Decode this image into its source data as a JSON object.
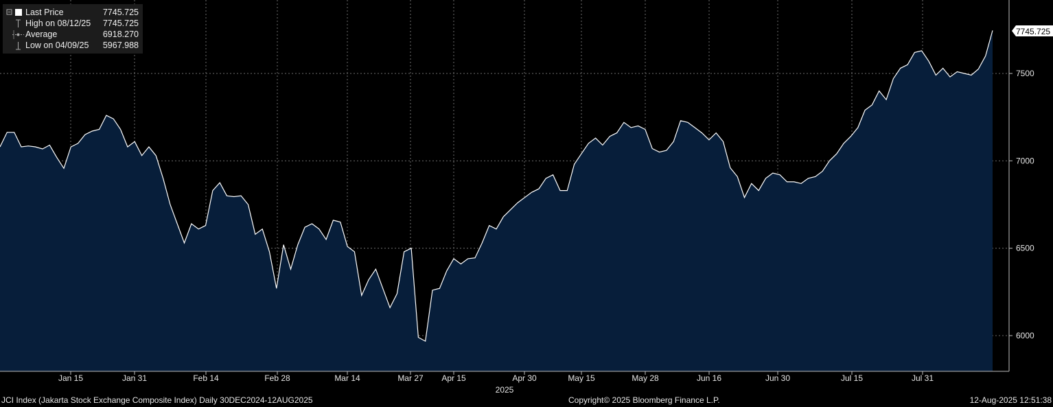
{
  "legend": {
    "last_price_label": "Last Price",
    "last_price_value": "7745.725",
    "high_label": "High on 08/12/25",
    "high_value": "7745.725",
    "average_label": "Average",
    "average_value": "6918.270",
    "low_label": "Low on 04/09/25",
    "low_value": "5967.988",
    "series_color": "#ffffff"
  },
  "last_value_tag": "7745.725",
  "footer": {
    "left": "JCI Index (Jakarta Stock Exchange Composite Index)  Daily 30DEC2024-12AUG2025",
    "center": "Copyright© 2025 Bloomberg Finance L.P.",
    "right": "12-Aug-2025 12:51:38"
  },
  "chart_data": {
    "type": "area",
    "line_color": "#ffffff",
    "fill_color": "#071e3a",
    "background": "#000000",
    "grid": true,
    "legend_position": "top-left",
    "ylim": [
      5800,
      7900
    ],
    "y_ticks": [
      6000,
      6500,
      7000,
      7500
    ],
    "x_ticks": [
      "Jan 15",
      "Jan 31",
      "Feb 14",
      "Feb 28",
      "Mar 14",
      "Mar 27",
      "Apr 15",
      "Apr 30",
      "May 15",
      "May 28",
      "Jun 16",
      "Jun 30",
      "Jul 15",
      "Jul 31"
    ],
    "x_year_label": "2025",
    "values": [
      7080,
      7163,
      7163,
      7080,
      7085,
      7080,
      7068,
      7090,
      7020,
      6957,
      7080,
      7100,
      7150,
      7170,
      7180,
      7260,
      7240,
      7180,
      7080,
      7110,
      7030,
      7080,
      7030,
      6900,
      6750,
      6640,
      6530,
      6640,
      6610,
      6630,
      6830,
      6875,
      6800,
      6795,
      6800,
      6750,
      6580,
      6610,
      6480,
      6270,
      6520,
      6380,
      6520,
      6620,
      6640,
      6610,
      6550,
      6660,
      6650,
      6510,
      6480,
      6230,
      6320,
      6380,
      6270,
      6160,
      6240,
      6480,
      6500,
      5990,
      5968,
      6260,
      6270,
      6370,
      6440,
      6410,
      6440,
      6445,
      6530,
      6630,
      6610,
      6680,
      6720,
      6760,
      6790,
      6820,
      6840,
      6900,
      6920,
      6830,
      6830,
      6980,
      7040,
      7100,
      7130,
      7090,
      7140,
      7160,
      7220,
      7190,
      7200,
      7180,
      7070,
      7050,
      7060,
      7110,
      7230,
      7220,
      7190,
      7160,
      7120,
      7160,
      7110,
      6960,
      6910,
      6790,
      6870,
      6830,
      6900,
      6930,
      6920,
      6880,
      6880,
      6870,
      6900,
      6910,
      6940,
      7000,
      7040,
      7100,
      7140,
      7190,
      7290,
      7320,
      7400,
      7350,
      7470,
      7530,
      7550,
      7620,
      7630,
      7570,
      7490,
      7530,
      7480,
      7510,
      7500,
      7490,
      7525,
      7600,
      7745.725
    ]
  }
}
